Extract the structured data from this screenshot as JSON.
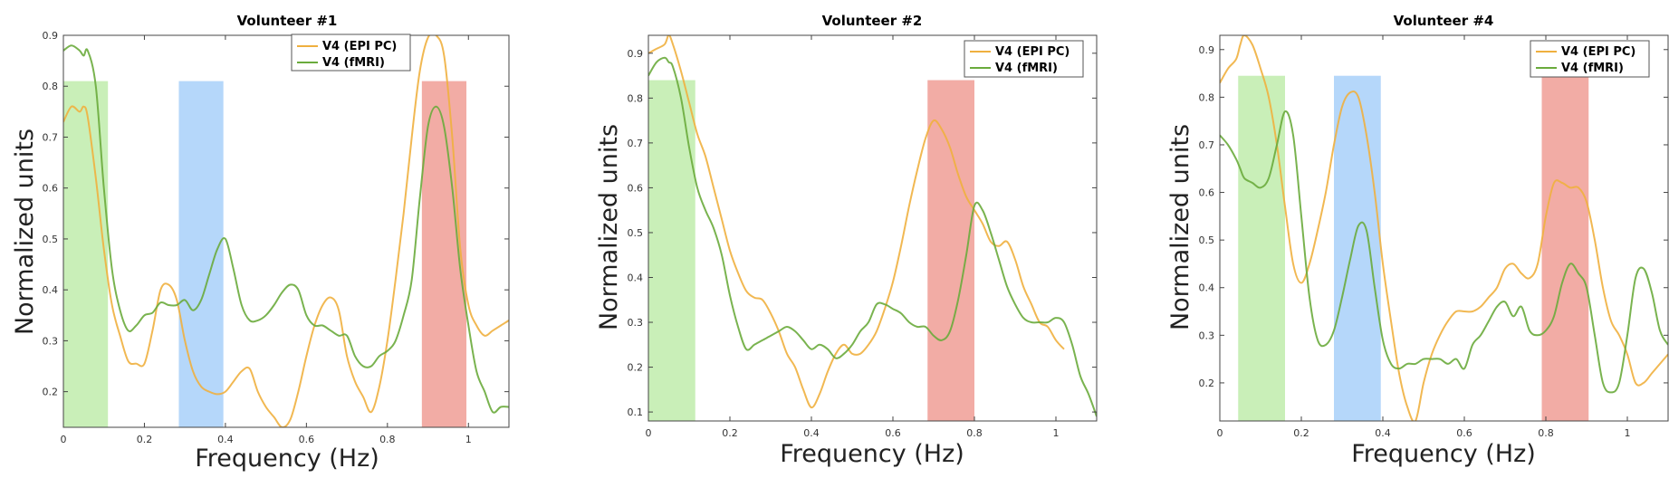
{
  "chart_data": [
    {
      "type": "line",
      "title": "Volunteer #1",
      "xlabel": "Frequency (Hz)",
      "ylabel": "Normalized units",
      "xlim": [
        0,
        1.1
      ],
      "ylim": [
        0.13,
        0.9
      ],
      "xticks": [
        "0",
        "0.2",
        "0.4",
        "0.6",
        "0.8",
        "1"
      ],
      "yticks": [
        "0.2",
        "0.3",
        "0.4",
        "0.5",
        "0.6",
        "0.7",
        "0.8",
        "0.9"
      ],
      "legend": [
        "V4 (EPI PC)",
        "V4 (fMRI)"
      ],
      "bands": [
        {
          "x0": 0.0,
          "x1": 0.11,
          "top": 0.81,
          "color": "#c9efb8"
        },
        {
          "x0": 0.285,
          "x1": 0.395,
          "top": 0.81,
          "color": "#b5d7fa"
        },
        {
          "x0": 0.885,
          "x1": 0.995,
          "top": 0.81,
          "color": "#f2aca5"
        }
      ],
      "series": [
        {
          "name": "V4 (EPI PC)",
          "color": "#efb03f",
          "x": [
            0,
            0.02,
            0.04,
            0.05,
            0.06,
            0.08,
            0.1,
            0.12,
            0.14,
            0.16,
            0.18,
            0.2,
            0.22,
            0.24,
            0.26,
            0.28,
            0.3,
            0.32,
            0.34,
            0.36,
            0.38,
            0.4,
            0.42,
            0.44,
            0.46,
            0.48,
            0.5,
            0.52,
            0.54,
            0.56,
            0.58,
            0.6,
            0.62,
            0.64,
            0.66,
            0.68,
            0.7,
            0.72,
            0.74,
            0.76,
            0.78,
            0.8,
            0.82,
            0.84,
            0.86,
            0.88,
            0.9,
            0.92,
            0.94,
            0.96,
            0.98,
            1.0,
            1.02,
            1.04,
            1.06,
            1.08,
            1.1
          ],
          "values": [
            0.73,
            0.76,
            0.75,
            0.76,
            0.74,
            0.62,
            0.48,
            0.37,
            0.31,
            0.26,
            0.255,
            0.255,
            0.32,
            0.4,
            0.41,
            0.38,
            0.3,
            0.24,
            0.21,
            0.2,
            0.195,
            0.2,
            0.22,
            0.24,
            0.245,
            0.2,
            0.17,
            0.15,
            0.13,
            0.145,
            0.2,
            0.27,
            0.33,
            0.37,
            0.385,
            0.36,
            0.27,
            0.22,
            0.19,
            0.16,
            0.21,
            0.3,
            0.42,
            0.55,
            0.7,
            0.83,
            0.895,
            0.9,
            0.86,
            0.7,
            0.48,
            0.37,
            0.33,
            0.31,
            0.32,
            0.33,
            0.34
          ]
        },
        {
          "name": "V4 (fMRI)",
          "color": "#6aab3c",
          "x": [
            0,
            0.02,
            0.04,
            0.05,
            0.06,
            0.08,
            0.1,
            0.12,
            0.14,
            0.16,
            0.18,
            0.2,
            0.22,
            0.24,
            0.26,
            0.28,
            0.3,
            0.32,
            0.34,
            0.36,
            0.38,
            0.4,
            0.42,
            0.44,
            0.46,
            0.48,
            0.5,
            0.52,
            0.54,
            0.56,
            0.58,
            0.6,
            0.62,
            0.64,
            0.66,
            0.68,
            0.7,
            0.72,
            0.74,
            0.76,
            0.78,
            0.8,
            0.82,
            0.84,
            0.86,
            0.88,
            0.9,
            0.92,
            0.94,
            0.96,
            0.98,
            1.0,
            1.02,
            1.04,
            1.06,
            1.08,
            1.1
          ],
          "values": [
            0.87,
            0.88,
            0.87,
            0.86,
            0.87,
            0.8,
            0.6,
            0.44,
            0.36,
            0.32,
            0.33,
            0.35,
            0.355,
            0.375,
            0.37,
            0.37,
            0.38,
            0.36,
            0.38,
            0.43,
            0.48,
            0.5,
            0.44,
            0.37,
            0.34,
            0.34,
            0.35,
            0.37,
            0.395,
            0.41,
            0.4,
            0.35,
            0.33,
            0.33,
            0.32,
            0.31,
            0.31,
            0.27,
            0.25,
            0.25,
            0.27,
            0.28,
            0.3,
            0.35,
            0.42,
            0.58,
            0.72,
            0.76,
            0.72,
            0.6,
            0.44,
            0.33,
            0.24,
            0.2,
            0.16,
            0.17,
            0.17
          ]
        }
      ]
    },
    {
      "type": "line",
      "title": "Volunteer #2",
      "xlabel": "Frequency (Hz)",
      "ylabel": "Normalized units",
      "xlim": [
        0,
        1.1
      ],
      "ylim": [
        0.08,
        0.94
      ],
      "xticks": [
        "0",
        "0.2",
        "0.4",
        "0.6",
        "0.8",
        "1"
      ],
      "yticks": [
        "0.1",
        "0.2",
        "0.3",
        "0.4",
        "0.5",
        "0.6",
        "0.7",
        "0.8",
        "0.9"
      ],
      "legend": [
        "V4 (EPI PC)",
        "V4 (fMRI)"
      ],
      "bands": [
        {
          "x0": 0.0,
          "x1": 0.115,
          "top": 0.84,
          "color": "#c9efb8"
        },
        {
          "x0": 0.685,
          "x1": 0.8,
          "top": 0.84,
          "color": "#f2aca5"
        }
      ],
      "series": [
        {
          "name": "V4 (EPI PC)",
          "color": "#efb03f",
          "x": [
            0,
            0.02,
            0.04,
            0.05,
            0.06,
            0.08,
            0.1,
            0.12,
            0.14,
            0.16,
            0.18,
            0.2,
            0.22,
            0.24,
            0.26,
            0.28,
            0.3,
            0.32,
            0.34,
            0.36,
            0.38,
            0.4,
            0.42,
            0.44,
            0.46,
            0.48,
            0.5,
            0.52,
            0.54,
            0.56,
            0.58,
            0.6,
            0.62,
            0.64,
            0.66,
            0.68,
            0.7,
            0.72,
            0.74,
            0.76,
            0.78,
            0.8,
            0.82,
            0.84,
            0.86,
            0.88,
            0.9,
            0.92,
            0.94,
            0.96,
            0.98,
            1.0,
            1.02
          ],
          "values": [
            0.9,
            0.91,
            0.92,
            0.94,
            0.92,
            0.86,
            0.79,
            0.72,
            0.67,
            0.6,
            0.53,
            0.46,
            0.41,
            0.37,
            0.355,
            0.35,
            0.32,
            0.28,
            0.23,
            0.2,
            0.15,
            0.11,
            0.14,
            0.19,
            0.23,
            0.25,
            0.23,
            0.23,
            0.25,
            0.28,
            0.33,
            0.39,
            0.47,
            0.56,
            0.64,
            0.71,
            0.75,
            0.73,
            0.69,
            0.63,
            0.58,
            0.55,
            0.52,
            0.48,
            0.47,
            0.48,
            0.44,
            0.38,
            0.34,
            0.3,
            0.29,
            0.26,
            0.24
          ]
        },
        {
          "name": "V4 (fMRI)",
          "color": "#6aab3c",
          "x": [
            0,
            0.02,
            0.04,
            0.05,
            0.06,
            0.08,
            0.1,
            0.12,
            0.14,
            0.16,
            0.18,
            0.2,
            0.22,
            0.24,
            0.26,
            0.28,
            0.3,
            0.32,
            0.34,
            0.36,
            0.38,
            0.4,
            0.42,
            0.44,
            0.46,
            0.48,
            0.5,
            0.52,
            0.54,
            0.56,
            0.58,
            0.6,
            0.62,
            0.64,
            0.66,
            0.68,
            0.7,
            0.72,
            0.74,
            0.76,
            0.78,
            0.8,
            0.82,
            0.84,
            0.86,
            0.88,
            0.9,
            0.92,
            0.94,
            0.96,
            0.98,
            1.0,
            1.02,
            1.04,
            1.06,
            1.08,
            1.1
          ],
          "values": [
            0.85,
            0.88,
            0.89,
            0.88,
            0.87,
            0.8,
            0.69,
            0.6,
            0.55,
            0.51,
            0.45,
            0.36,
            0.29,
            0.24,
            0.25,
            0.26,
            0.27,
            0.28,
            0.29,
            0.28,
            0.26,
            0.24,
            0.25,
            0.24,
            0.22,
            0.23,
            0.25,
            0.28,
            0.3,
            0.34,
            0.34,
            0.33,
            0.32,
            0.3,
            0.29,
            0.29,
            0.27,
            0.26,
            0.28,
            0.35,
            0.45,
            0.56,
            0.55,
            0.5,
            0.44,
            0.38,
            0.34,
            0.31,
            0.3,
            0.3,
            0.3,
            0.31,
            0.3,
            0.25,
            0.18,
            0.14,
            0.09
          ]
        }
      ]
    },
    {
      "type": "line",
      "title": "Volunteer #4",
      "xlabel": "Frequency (Hz)",
      "ylabel": "Normalized units",
      "xlim": [
        0,
        1.1
      ],
      "ylim": [
        0.12,
        0.93
      ],
      "xticks": [
        "0",
        "0.2",
        "0.4",
        "0.6",
        "0.8",
        "1"
      ],
      "yticks": [
        "0.2",
        "0.3",
        "0.4",
        "0.5",
        "0.6",
        "0.7",
        "0.8",
        "0.9"
      ],
      "legend": [
        "V4 (EPI PC)",
        "V4 (fMRI)"
      ],
      "bands": [
        {
          "x0": 0.045,
          "x1": 0.16,
          "top": 0.845,
          "color": "#c9efb8"
        },
        {
          "x0": 0.28,
          "x1": 0.395,
          "top": 0.845,
          "color": "#b5d7fa"
        },
        {
          "x0": 0.79,
          "x1": 0.905,
          "top": 0.845,
          "color": "#f2aca5"
        }
      ],
      "series": [
        {
          "name": "V4 (EPI PC)",
          "color": "#efb03f",
          "x": [
            0,
            0.02,
            0.04,
            0.05,
            0.06,
            0.08,
            0.1,
            0.12,
            0.14,
            0.16,
            0.18,
            0.2,
            0.22,
            0.24,
            0.26,
            0.28,
            0.3,
            0.32,
            0.34,
            0.36,
            0.38,
            0.4,
            0.42,
            0.44,
            0.46,
            0.48,
            0.5,
            0.52,
            0.54,
            0.56,
            0.58,
            0.6,
            0.62,
            0.64,
            0.66,
            0.68,
            0.7,
            0.72,
            0.74,
            0.76,
            0.78,
            0.8,
            0.82,
            0.84,
            0.86,
            0.88,
            0.9,
            0.92,
            0.94,
            0.96,
            0.98,
            1.0,
            1.02,
            1.04,
            1.06,
            1.08,
            1.1
          ],
          "values": [
            0.83,
            0.86,
            0.88,
            0.91,
            0.93,
            0.91,
            0.86,
            0.8,
            0.7,
            0.57,
            0.45,
            0.41,
            0.45,
            0.52,
            0.6,
            0.7,
            0.78,
            0.81,
            0.8,
            0.72,
            0.6,
            0.45,
            0.33,
            0.22,
            0.15,
            0.12,
            0.2,
            0.26,
            0.3,
            0.33,
            0.35,
            0.35,
            0.35,
            0.36,
            0.38,
            0.4,
            0.44,
            0.45,
            0.43,
            0.42,
            0.45,
            0.55,
            0.62,
            0.62,
            0.61,
            0.61,
            0.58,
            0.5,
            0.4,
            0.33,
            0.3,
            0.26,
            0.2,
            0.2,
            0.22,
            0.24,
            0.26
          ]
        },
        {
          "name": "V4 (fMRI)",
          "color": "#6aab3c",
          "x": [
            0,
            0.02,
            0.04,
            0.05,
            0.06,
            0.08,
            0.1,
            0.12,
            0.14,
            0.16,
            0.18,
            0.2,
            0.22,
            0.24,
            0.26,
            0.28,
            0.3,
            0.32,
            0.34,
            0.36,
            0.38,
            0.4,
            0.42,
            0.44,
            0.46,
            0.48,
            0.5,
            0.52,
            0.54,
            0.56,
            0.58,
            0.6,
            0.62,
            0.64,
            0.66,
            0.68,
            0.7,
            0.72,
            0.74,
            0.76,
            0.78,
            0.8,
            0.82,
            0.84,
            0.86,
            0.88,
            0.9,
            0.92,
            0.94,
            0.96,
            0.98,
            1.0,
            1.02,
            1.04,
            1.06,
            1.08,
            1.1
          ],
          "values": [
            0.72,
            0.7,
            0.67,
            0.65,
            0.63,
            0.62,
            0.61,
            0.63,
            0.7,
            0.77,
            0.72,
            0.55,
            0.38,
            0.29,
            0.28,
            0.31,
            0.38,
            0.46,
            0.53,
            0.52,
            0.4,
            0.29,
            0.24,
            0.23,
            0.24,
            0.24,
            0.25,
            0.25,
            0.25,
            0.24,
            0.25,
            0.23,
            0.28,
            0.3,
            0.33,
            0.36,
            0.37,
            0.34,
            0.36,
            0.31,
            0.3,
            0.31,
            0.34,
            0.41,
            0.45,
            0.43,
            0.4,
            0.3,
            0.2,
            0.18,
            0.2,
            0.3,
            0.42,
            0.44,
            0.39,
            0.31,
            0.28
          ]
        }
      ]
    }
  ]
}
